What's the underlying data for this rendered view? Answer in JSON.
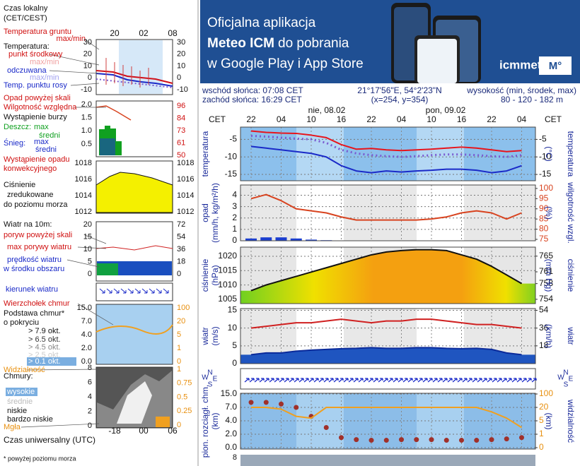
{
  "banner": {
    "line1": "Oficjalna aplikacja",
    "line2_bold": "Meteo ICM",
    "line2_rest": "do pobrania",
    "line3": "w Google Play i App Store",
    "logo": "icmmeteo",
    "logo_badge": "M°"
  },
  "info": {
    "sunrise": "wschód słońca: 07:08 CET",
    "sunset": "zachód słońca: 16:29 CET",
    "coords": "21°17'56\"E, 54°2'23\"N",
    "grid": "(x=254,  y=354)",
    "elevation_label": "wysokość (min, środek, max)",
    "elevation": "80 - 120 - 182 m"
  },
  "header": {
    "tz_left": "CET",
    "tz_right": "CET",
    "dates": [
      "nie, 08.02",
      "pon, 09.02"
    ],
    "compass": [
      "N",
      "W",
      "E",
      "S"
    ],
    "partial_tick": 8
  },
  "legend": {
    "local_time": "Czas lokalny",
    "local_time_zone": "(CET/CEST)",
    "hours_top": [
      "20",
      "02",
      "08"
    ],
    "ground_temp": "Temperatura gruntu",
    "ground_maxmin": "max/min",
    "temp": "Temperatura:",
    "temp_mid": "punkt środkowy",
    "temp_maxmin": "max/min",
    "feels": "odczuwana",
    "feels_maxmin": "max/min",
    "dew": "Temp. punktu rosy",
    "temp_ticks": [
      30,
      20,
      10,
      0,
      -10
    ],
    "precip_over": "Opad powyżej skali",
    "humidity": "Wilgotność względna",
    "storm": "Wystąpienie burzy",
    "rain": "Deszcz:",
    "rain_max": "max",
    "rain_avg": "średni",
    "snow": "Śnieg:",
    "snow_max": "max",
    "snow_avg": "średni",
    "convective1": "Wystąpienie opadu",
    "convective2": "konwekcyjnego",
    "precip_ticks": [
      {
        "value": 2.0,
        "label": "2.0"
      },
      {
        "value": 1.5,
        "label": "1.5"
      },
      {
        "value": 1.0,
        "label": "1.0"
      },
      {
        "value": 0.5,
        "label": "0.5"
      }
    ],
    "humidity_ticks": [
      96,
      84,
      73,
      61,
      50
    ],
    "pressure1": "Ciśnienie",
    "pressure2": "zredukowane",
    "pressure3": "do poziomu morza",
    "pressure_ticks": [
      1018,
      1016,
      1014,
      1012
    ],
    "wind": "Wiatr na 10m:",
    "gust_over": "poryw powyżej skali",
    "gust_max": "max porywy wiatru",
    "wind_speed": "prędkość wiatru",
    "wind_center": "w środku obszaru",
    "wind_ticks": [
      20,
      15,
      10,
      5,
      0
    ],
    "wind_kmh_ticks": [
      72,
      54,
      36,
      18,
      0
    ],
    "wind_dir": "kierunek wiatru",
    "cloud_top": "Wierzchołek chmur",
    "cloud_base": "Podstawa chmur*",
    "cover": "o pokryciu",
    "okt": [
      "> 7.9 okt.",
      "> 6.5 okt.",
      "> 4.5 okt.",
      "> 2.5 okt.",
      "> 0.1 okt."
    ],
    "cloud_ticks": [
      {
        "value": 15.0,
        "label": "15.0"
      },
      {
        "value": 7.0,
        "label": "7.0"
      },
      {
        "value": 4.0,
        "label": "4.0"
      },
      {
        "value": 2.0,
        "label": "2.0"
      },
      {
        "value": 0.0,
        "label": "0.0"
      }
    ],
    "vis_ticks": [
      100,
      20,
      5,
      1,
      0
    ],
    "visibility": "Widzialność",
    "clouds": "Chmury:",
    "high": "wysokie",
    "mid": "średnie",
    "low": "niskie",
    "very_low": "bardzo niskie",
    "fog": "Mgła",
    "octa_ticks": [
      8,
      6,
      4,
      2,
      0
    ],
    "frac_ticks": [
      1,
      0.75,
      0.5,
      0.25,
      0
    ],
    "hours_bottom": [
      "-18",
      "00",
      "06"
    ],
    "utc": "Czas uniwersalny (UTC)",
    "footnote": "* powyżej poziomu morza"
  },
  "chart_data": [
    {
      "type": "line",
      "categories": [
        "22",
        null,
        "04",
        null,
        "10",
        null,
        "16",
        null,
        "22",
        null,
        "04",
        null,
        "10",
        null,
        "16",
        null,
        "22",
        null,
        "04"
      ],
      "ylabel": "temperatura",
      "y2unit": "(°C)",
      "y2label": "temperatura",
      "ylim": [
        -16.8,
        -1.5
      ],
      "yticks": [
        -5,
        -10,
        -15
      ],
      "y2lim": [
        -16.8,
        -1.5
      ],
      "y2ticks": [
        -5,
        -10,
        -15
      ],
      "grid": true,
      "series": [
        {
          "color": "#e8141b",
          "values": [
            -2.6,
            -3,
            -3.2,
            -3.3,
            -3.8,
            -4.5,
            -6.5,
            -7.8,
            -7.6,
            -8,
            -8.2,
            -8,
            -7.8,
            -7.5,
            -7.2,
            -7.5,
            -8,
            -8.5,
            -8.2
          ]
        },
        {
          "color": "#7a5ad0",
          "style": "dotted",
          "values": [
            -4,
            -4.2,
            -4.5,
            -4.8,
            -5,
            -6,
            -8,
            -9,
            -9.5,
            -9.8,
            -10,
            -9.8,
            -9.5,
            -9.3,
            -9.3,
            -9.5,
            -9.8,
            -10,
            -9.5
          ]
        },
        {
          "color": "#1a2ac8",
          "values": [
            -7,
            -7.5,
            -8,
            -8.5,
            -9,
            -10,
            -12.5,
            -14,
            -14.5,
            -14,
            -14.3,
            -14,
            -13.8,
            -13.5,
            -13.5,
            -13.8,
            -14.5,
            -14,
            -12.5
          ]
        }
      ]
    },
    {
      "type": "line",
      "ylabel": "opad",
      "yunit": "(mm/h, kg/m²/h)",
      "y2unit": "(%)",
      "y2label": "wilgotność wzgl.",
      "ylim": [
        0,
        4.9
      ],
      "yticks": [
        0,
        1,
        2,
        3,
        4
      ],
      "y2lim": [
        74.3,
        101.7
      ],
      "y2ticks": [
        75,
        80,
        85,
        90,
        95,
        100
      ],
      "grid": true,
      "series": [
        {
          "color": "#1c3fd0",
          "kind": "bar",
          "values": [
            0.2,
            0.3,
            0.3,
            0.2,
            0.1,
            0.05,
            0,
            0,
            0,
            0,
            0,
            0,
            0,
            0,
            0,
            0,
            0,
            0,
            0
          ]
        },
        {
          "color": "#d8431f",
          "axis": "y2",
          "values": [
            95,
            97,
            94,
            90,
            89,
            88,
            86,
            84.5,
            84.5,
            84.5,
            84.5,
            84.5,
            85,
            86,
            88,
            89,
            88,
            85,
            88
          ]
        }
      ]
    },
    {
      "type": "line",
      "ylabel": "ciśnienie",
      "yunit": "(hPa)",
      "y2unit": "(mm Hg)",
      "y2label": "ciśnienie",
      "ylim": [
        1003.5,
        1023.2
      ],
      "yticks": [
        1005,
        1010,
        1015,
        1020
      ],
      "y2lim": [
        752.9,
        767.3
      ],
      "y2ticks": [
        754,
        758,
        761,
        765
      ],
      "grid": true,
      "series": [
        {
          "color": "#111111",
          "kind": "area",
          "values": [
            1008,
            1010,
            1011.5,
            1013,
            1014.5,
            1016,
            1017.5,
            1019,
            1020.5,
            1021.5,
            1022,
            1022.3,
            1022.3,
            1022,
            1020.5,
            1019,
            1016.5,
            1013.5,
            1010.5
          ]
        }
      ]
    },
    {
      "type": "line",
      "ylabel": "wiatr",
      "yunit": "(m/s)",
      "y2unit": "(km/h)",
      "y2label": "wiatr",
      "ylim": [
        0,
        15.5
      ],
      "yticks": [
        0,
        5,
        10,
        15
      ],
      "y2lim": [
        0,
        55.8
      ],
      "y2ticks": [
        18,
        36,
        54
      ],
      "grid": true,
      "series": [
        {
          "color": "#0a2a9a",
          "kind": "area",
          "values": [
            2.5,
            3,
            3,
            3.5,
            3.8,
            4,
            4.2,
            4.3,
            4.5,
            4.3,
            4.3,
            4.5,
            4.5,
            4.3,
            4.2,
            4.3,
            4,
            3,
            2.5
          ]
        },
        {
          "color": "#d02020",
          "values": [
            10,
            10.5,
            11,
            11.5,
            11.5,
            12,
            12.5,
            12,
            11.5,
            12,
            12,
            12.5,
            12.5,
            12,
            11.5,
            11,
            11,
            10.5,
            10
          ]
        }
      ]
    },
    {
      "type": "line",
      "ylabel": "pion. rozciągł. chm.",
      "yunit": "(km)",
      "y2unit": "(km)",
      "y2label": "widzialność",
      "yscale": "piecewise",
      "ylim": [
        0,
        15
      ],
      "yticks": [
        {
          "value": 15.0,
          "label": "15.0"
        },
        {
          "value": 7.0,
          "label": "7.0"
        },
        {
          "value": 4.0,
          "label": "4.0"
        },
        {
          "value": 2.0,
          "label": "2.0"
        },
        {
          "value": 0.0,
          "label": "0.0"
        }
      ],
      "y2lim": [
        0,
        100
      ],
      "y2ticks": [
        100,
        20,
        5,
        1,
        0
      ],
      "grid": true,
      "series": [
        {
          "color": "#a0302a",
          "kind": "dots",
          "values": [
            10,
            10,
            9,
            7,
            5,
            3,
            1.5,
            1.2,
            1.1,
            1.1,
            1.2,
            1.2,
            1.2,
            1.1,
            1.1,
            1.1,
            1.2,
            1.3,
            1.5
          ]
        },
        {
          "color": "#f0a020",
          "axis": "y2",
          "values": [
            20,
            20,
            18,
            10,
            8,
            20,
            20,
            20,
            20,
            20,
            20,
            20,
            20,
            20,
            20,
            20,
            15,
            8,
            3
          ]
        }
      ]
    }
  ]
}
